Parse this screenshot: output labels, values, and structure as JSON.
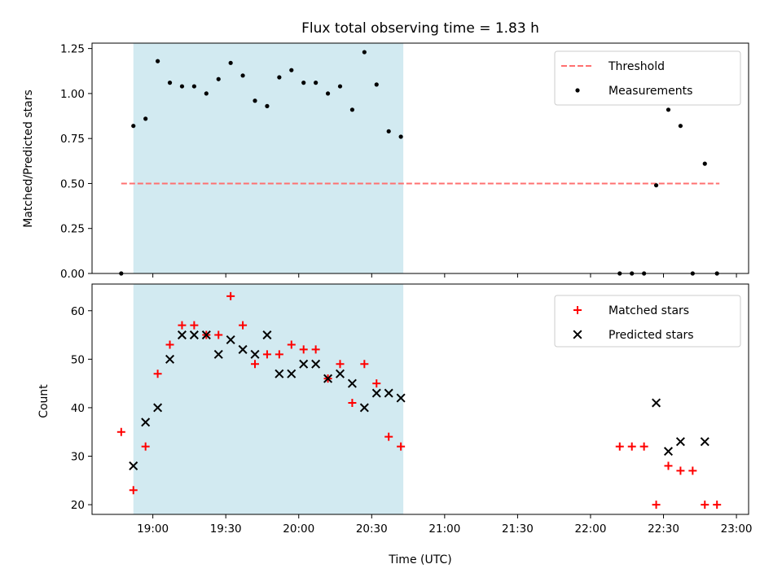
{
  "chart_data": [
    {
      "type": "scatter",
      "title": "Flux total observing time = 1.83 h",
      "xlabel": "",
      "ylabel": "Matched/Predicted stars",
      "xlim": [
        "18:35",
        "23:05"
      ],
      "ylim": [
        0,
        1.28
      ],
      "x_ticks": [
        "19:00",
        "19:30",
        "20:00",
        "20:30",
        "21:00",
        "21:30",
        "22:00",
        "22:30",
        "23:00"
      ],
      "x_ticks_labeled": false,
      "y_ticks": [
        "0.00",
        "0.25",
        "0.50",
        "0.75",
        "1.00",
        "1.25"
      ],
      "shaded_span": {
        "x": [
          "18:52",
          "20:43"
        ],
        "color": "#add8e6"
      },
      "legend": {
        "placement": "top-right",
        "entries": [
          "Threshold",
          "Measurements"
        ]
      },
      "threshold": {
        "name": "Threshold",
        "value": 0.5,
        "x": [
          "18:47",
          "22:53"
        ],
        "color": "#ff7070",
        "style": "dashed"
      },
      "series": [
        {
          "name": "Measurements",
          "marker": "dot",
          "color": "#000000",
          "x": [
            "18:47",
            "18:52",
            "18:57",
            "19:02",
            "19:07",
            "19:12",
            "19:17",
            "19:22",
            "19:27",
            "19:32",
            "19:37",
            "19:42",
            "19:47",
            "19:52",
            "19:57",
            "20:02",
            "20:07",
            "20:12",
            "20:17",
            "20:22",
            "20:27",
            "20:32",
            "20:37",
            "20:42",
            "22:12",
            "22:17",
            "22:22",
            "22:27",
            "22:32",
            "22:37",
            "22:42",
            "22:47",
            "22:52"
          ],
          "y": [
            0.0,
            0.82,
            0.86,
            1.18,
            1.06,
            1.04,
            1.04,
            1.0,
            1.08,
            1.17,
            1.1,
            0.96,
            0.93,
            1.09,
            1.13,
            1.06,
            1.06,
            1.0,
            1.04,
            0.91,
            1.23,
            1.05,
            0.79,
            0.76,
            0.0,
            0.0,
            0.0,
            0.49,
            0.91,
            0.82,
            0.0,
            0.61,
            0.0
          ]
        }
      ]
    },
    {
      "type": "scatter",
      "title": "",
      "xlabel": "Time (UTC)",
      "ylabel": "Count",
      "xlim": [
        "18:35",
        "23:05"
      ],
      "ylim": [
        18,
        65.5
      ],
      "x_ticks": [
        "19:00",
        "19:30",
        "20:00",
        "20:30",
        "21:00",
        "21:30",
        "22:00",
        "22:30",
        "23:00"
      ],
      "x_ticks_labeled": true,
      "y_ticks": [
        "20",
        "30",
        "40",
        "50",
        "60"
      ],
      "shaded_span": {
        "x": [
          "18:52",
          "20:43"
        ],
        "color": "#add8e6"
      },
      "legend": {
        "placement": "top-right",
        "entries": [
          "Matched stars",
          "Predicted stars"
        ]
      },
      "series": [
        {
          "name": "Matched stars",
          "marker": "plus",
          "color": "#ff0000",
          "x": [
            "18:47",
            "18:52",
            "18:57",
            "19:02",
            "19:07",
            "19:12",
            "19:17",
            "19:22",
            "19:27",
            "19:32",
            "19:37",
            "19:42",
            "19:47",
            "19:52",
            "19:57",
            "20:02",
            "20:07",
            "20:12",
            "20:17",
            "20:22",
            "20:27",
            "20:32",
            "20:37",
            "20:42",
            "22:12",
            "22:17",
            "22:22",
            "22:27",
            "22:32",
            "22:37",
            "22:42",
            "22:47",
            "22:52"
          ],
          "y": [
            35,
            23,
            32,
            47,
            53,
            57,
            57,
            55,
            55,
            63,
            57,
            49,
            51,
            51,
            53,
            52,
            52,
            46,
            49,
            41,
            49,
            45,
            34,
            32,
            32,
            32,
            32,
            20,
            28,
            27,
            27,
            20,
            20
          ]
        },
        {
          "name": "Predicted stars",
          "marker": "x",
          "color": "#000000",
          "x": [
            "18:52",
            "18:57",
            "19:02",
            "19:07",
            "19:12",
            "19:17",
            "19:22",
            "19:27",
            "19:32",
            "19:37",
            "19:42",
            "19:47",
            "19:52",
            "19:57",
            "20:02",
            "20:07",
            "20:12",
            "20:17",
            "20:22",
            "20:27",
            "20:32",
            "20:37",
            "20:42",
            "22:27",
            "22:32",
            "22:37",
            "22:47"
          ],
          "y": [
            28,
            37,
            40,
            50,
            55,
            55,
            55,
            51,
            54,
            52,
            51,
            55,
            47,
            47,
            49,
            49,
            46,
            47,
            45,
            40,
            43,
            43,
            42,
            41,
            31,
            33,
            33
          ]
        }
      ]
    }
  ]
}
